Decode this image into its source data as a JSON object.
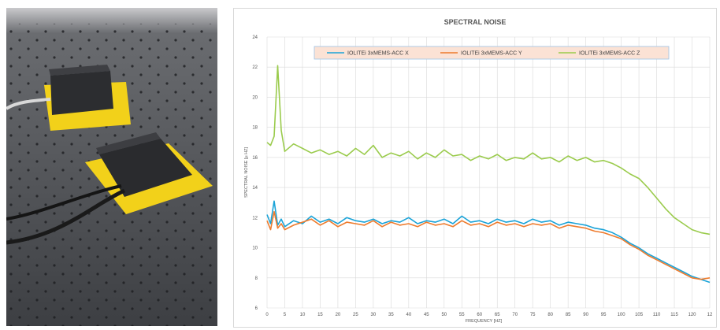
{
  "colors": {
    "series_x": "#1aa3d8",
    "series_y": "#ee7b2d",
    "series_z": "#9acb4c",
    "legend_bg": "#fbe2d5",
    "legend_border": "#9dc3e6",
    "grid": "#d9d9d9",
    "tray": "#f2d11a"
  },
  "photo": {
    "description_icon": "photo-icon"
  },
  "chart_data": {
    "type": "line",
    "title": "SPECTRAL NOISE",
    "xlabel": "FREQUENCY [HZ]",
    "ylabel": "SPECTRAL NOISE [µ HZ]",
    "xlim": [
      0,
      125
    ],
    "ylim": [
      6,
      24
    ],
    "x_ticks": [
      "0",
      "5",
      "10",
      "15",
      "20",
      "25",
      "30",
      "35",
      "40",
      "45",
      "50",
      "55",
      "60",
      "65",
      "70",
      "75",
      "80",
      "85",
      "90",
      "95",
      "100",
      "105",
      "110",
      "115",
      "120",
      "12"
    ],
    "y_ticks": [
      "6",
      "8",
      "10",
      "12",
      "14",
      "16",
      "18",
      "20",
      "22",
      "24"
    ],
    "grid": true,
    "legend_position": "top",
    "x": [
      0,
      1,
      2,
      3,
      4,
      5,
      7.5,
      10,
      12.5,
      15,
      17.5,
      20,
      22.5,
      25,
      27.5,
      30,
      32.5,
      35,
      37.5,
      40,
      42.5,
      45,
      47.5,
      50,
      52.5,
      55,
      57.5,
      60,
      62.5,
      65,
      67.5,
      70,
      72.5,
      75,
      77.5,
      80,
      82.5,
      85,
      87.5,
      90,
      92.5,
      95,
      97.5,
      100,
      102.5,
      105,
      107.5,
      110,
      112.5,
      115,
      117.5,
      120,
      122.5,
      125
    ],
    "series": [
      {
        "name": "IOLITEi 3xMEMS-ACC X",
        "values": [
          12.2,
          11.6,
          13.1,
          11.5,
          11.9,
          11.4,
          11.8,
          11.6,
          12.1,
          11.7,
          11.9,
          11.6,
          12.0,
          11.8,
          11.7,
          11.9,
          11.6,
          11.8,
          11.7,
          12.0,
          11.6,
          11.8,
          11.7,
          11.9,
          11.6,
          12.1,
          11.7,
          11.8,
          11.6,
          11.9,
          11.7,
          11.8,
          11.6,
          11.9,
          11.7,
          11.8,
          11.5,
          11.7,
          11.6,
          11.5,
          11.3,
          11.2,
          11.0,
          10.7,
          10.3,
          10.0,
          9.6,
          9.3,
          9.0,
          8.7,
          8.4,
          8.1,
          7.9,
          7.7
        ]
      },
      {
        "name": "IOLITEi 3xMEMS-ACC Y",
        "values": [
          11.8,
          11.2,
          12.4,
          11.3,
          11.6,
          11.2,
          11.5,
          11.7,
          11.9,
          11.5,
          11.8,
          11.4,
          11.7,
          11.6,
          11.5,
          11.8,
          11.4,
          11.7,
          11.5,
          11.6,
          11.4,
          11.7,
          11.5,
          11.6,
          11.4,
          11.8,
          11.5,
          11.6,
          11.4,
          11.7,
          11.5,
          11.6,
          11.4,
          11.6,
          11.5,
          11.6,
          11.3,
          11.5,
          11.4,
          11.3,
          11.1,
          11.0,
          10.8,
          10.6,
          10.2,
          9.9,
          9.5,
          9.2,
          8.9,
          8.6,
          8.3,
          8.0,
          7.9,
          8.0
        ]
      },
      {
        "name": "IOLITEi 3xMEMS-ACC Z",
        "values": [
          17.0,
          16.8,
          17.4,
          22.1,
          17.8,
          16.4,
          16.9,
          16.6,
          16.3,
          16.5,
          16.2,
          16.4,
          16.1,
          16.6,
          16.2,
          16.8,
          16.0,
          16.3,
          16.1,
          16.4,
          15.9,
          16.3,
          16.0,
          16.5,
          16.1,
          16.2,
          15.8,
          16.1,
          15.9,
          16.2,
          15.8,
          16.0,
          15.9,
          16.3,
          15.9,
          16.0,
          15.7,
          16.1,
          15.8,
          16.0,
          15.7,
          15.8,
          15.6,
          15.3,
          14.9,
          14.6,
          14.0,
          13.3,
          12.6,
          12.0,
          11.6,
          11.2,
          11.0,
          10.9
        ]
      }
    ]
  }
}
